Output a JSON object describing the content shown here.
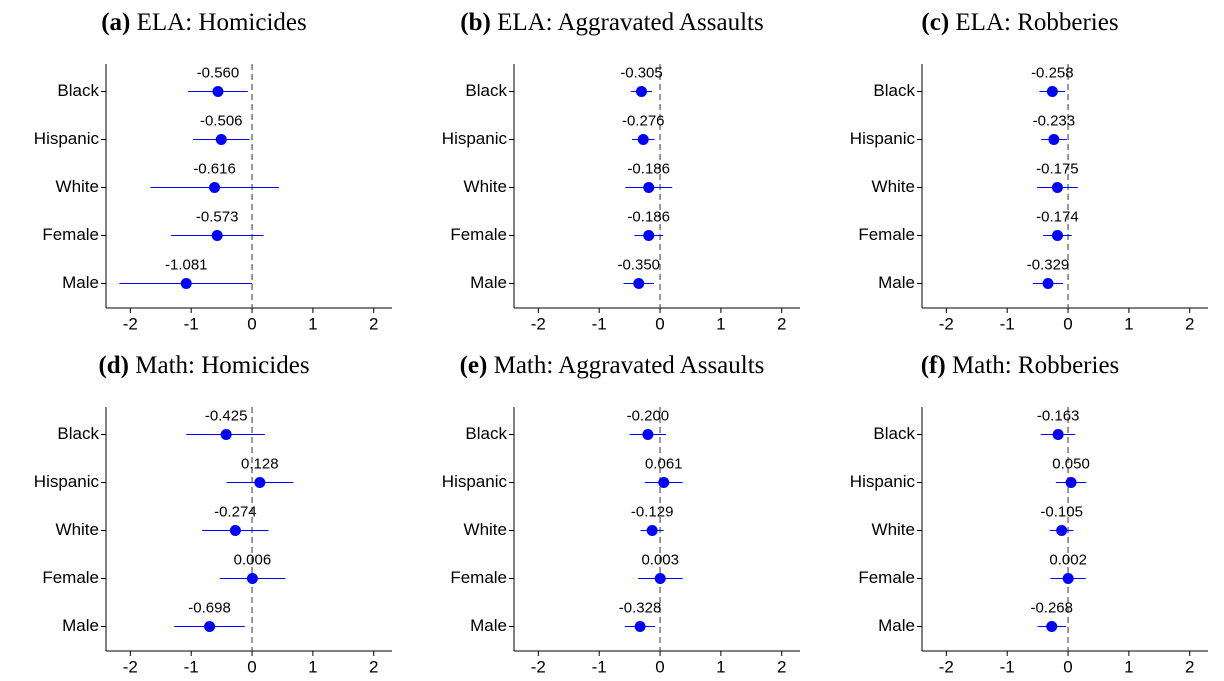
{
  "chart_data": [
    {
      "type": "dot",
      "label": "(a)",
      "title": "ELA: Homicides",
      "categories": [
        "Black",
        "Hispanic",
        "White",
        "Female",
        "Male"
      ],
      "values": [
        -0.56,
        -0.506,
        -0.616,
        -0.573,
        -1.081
      ],
      "value_labels": [
        "-0.560",
        "-0.506",
        "-0.616",
        "-0.573",
        "-1.081"
      ],
      "lower": [
        -1.05,
        -0.97,
        -1.67,
        -1.33,
        -2.18
      ],
      "upper": [
        -0.07,
        -0.04,
        0.44,
        0.19,
        0.0
      ],
      "color": "#0000ff",
      "refline": 0,
      "xlim": [
        -2.4,
        2.3
      ],
      "xticks": [
        -2,
        -1,
        0,
        1,
        2
      ]
    },
    {
      "type": "dot",
      "label": "(b)",
      "title": "ELA: Aggravated Assaults",
      "categories": [
        "Black",
        "Hispanic",
        "White",
        "Female",
        "Male"
      ],
      "values": [
        -0.305,
        -0.276,
        -0.186,
        -0.186,
        -0.35
      ],
      "value_labels": [
        "-0.305",
        "-0.276",
        "-0.186",
        "-0.186",
        "-0.350"
      ],
      "lower": [
        -0.48,
        -0.46,
        -0.57,
        -0.42,
        -0.6
      ],
      "upper": [
        -0.13,
        -0.09,
        0.2,
        0.05,
        -0.1
      ],
      "color": "#0000ff",
      "refline": 0,
      "xlim": [
        -2.4,
        2.3
      ],
      "xticks": [
        -2,
        -1,
        0,
        1,
        2
      ]
    },
    {
      "type": "dot",
      "label": "(c)",
      "title": "ELA: Robberies",
      "categories": [
        "Black",
        "Hispanic",
        "White",
        "Female",
        "Male"
      ],
      "values": [
        -0.258,
        -0.233,
        -0.175,
        -0.174,
        -0.329
      ],
      "value_labels": [
        "-0.258",
        "-0.233",
        "-0.175",
        "-0.174",
        "-0.329"
      ],
      "lower": [
        -0.47,
        -0.44,
        -0.51,
        -0.41,
        -0.58
      ],
      "upper": [
        -0.05,
        -0.02,
        0.16,
        0.06,
        -0.08
      ],
      "color": "#0000ff",
      "refline": 0,
      "xlim": [
        -2.4,
        2.3
      ],
      "xticks": [
        -2,
        -1,
        0,
        1,
        2
      ]
    },
    {
      "type": "dot",
      "label": "(d)",
      "title": "Math: Homicides",
      "categories": [
        "Black",
        "Hispanic",
        "White",
        "Female",
        "Male"
      ],
      "values": [
        -0.425,
        0.128,
        -0.274,
        0.006,
        -0.698
      ],
      "value_labels": [
        "-0.425",
        "0.128",
        "-0.274",
        "0.006",
        "-0.698"
      ],
      "lower": [
        -1.08,
        -0.42,
        -0.82,
        -0.53,
        -1.28
      ],
      "upper": [
        0.21,
        0.68,
        0.27,
        0.55,
        -0.12
      ],
      "color": "#0000ff",
      "refline": 0,
      "xlim": [
        -2.4,
        2.3
      ],
      "xticks": [
        -2,
        -1,
        0,
        1,
        2
      ]
    },
    {
      "type": "dot",
      "label": "(e)",
      "title": "Math: Aggravated Assaults",
      "categories": [
        "Black",
        "Hispanic",
        "White",
        "Female",
        "Male"
      ],
      "values": [
        -0.2,
        0.061,
        -0.129,
        0.003,
        -0.328
      ],
      "value_labels": [
        "-0.200",
        "0.061",
        "-0.129",
        "0.003",
        "-0.328"
      ],
      "lower": [
        -0.5,
        -0.25,
        -0.32,
        -0.36,
        -0.58
      ],
      "upper": [
        0.1,
        0.37,
        0.06,
        0.37,
        -0.08
      ],
      "color": "#0000ff",
      "refline": 0,
      "xlim": [
        -2.4,
        2.3
      ],
      "xticks": [
        -2,
        -1,
        0,
        1,
        2
      ]
    },
    {
      "type": "dot",
      "label": "(f)",
      "title": "Math: Robberies",
      "categories": [
        "Black",
        "Hispanic",
        "White",
        "Female",
        "Male"
      ],
      "values": [
        -0.163,
        0.05,
        -0.105,
        0.002,
        -0.268
      ],
      "value_labels": [
        "-0.163",
        "0.050",
        "-0.105",
        "0.002",
        "-0.268"
      ],
      "lower": [
        -0.45,
        -0.2,
        -0.3,
        -0.29,
        -0.5
      ],
      "upper": [
        0.12,
        0.3,
        0.09,
        0.29,
        -0.03
      ],
      "color": "#0000ff",
      "refline": 0,
      "xlim": [
        -2.4,
        2.3
      ],
      "xticks": [
        -2,
        -1,
        0,
        1,
        2
      ]
    }
  ]
}
